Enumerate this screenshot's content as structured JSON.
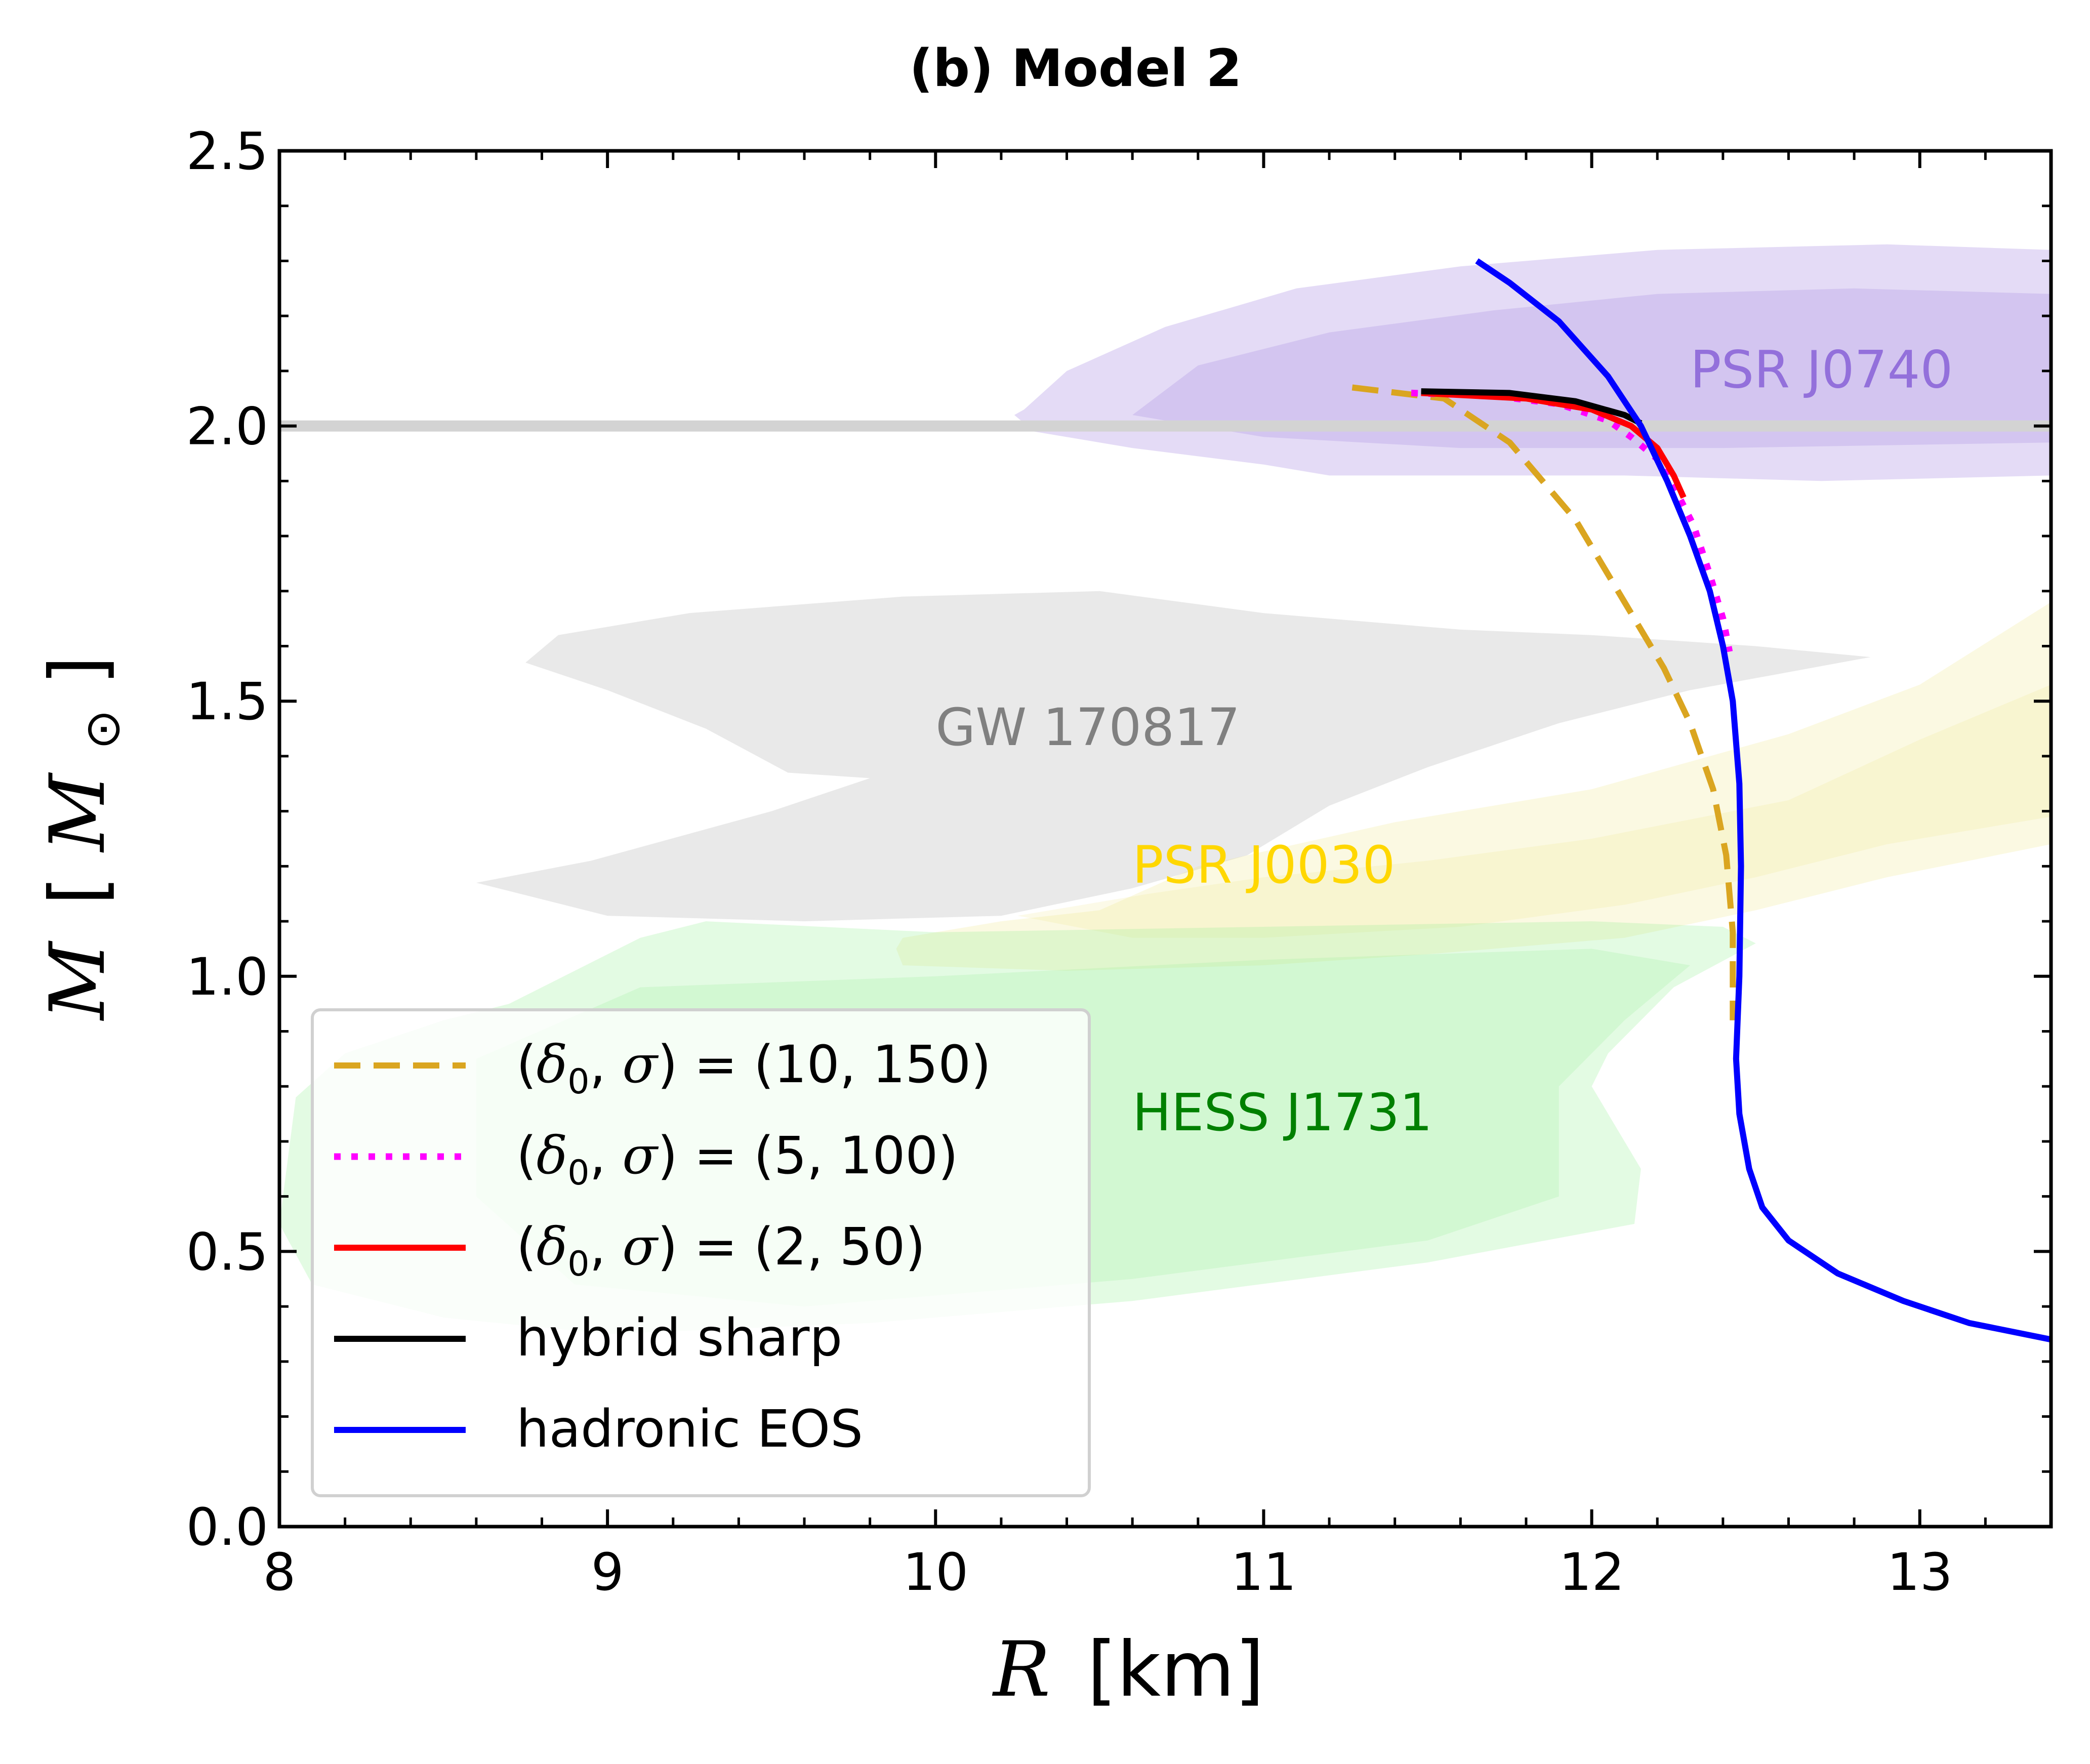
{
  "chart_data": {
    "type": "line",
    "title": "(b) Model 2",
    "xlabel": {
      "var": "R",
      "unit": "[km]"
    },
    "ylabel": {
      "var": "M",
      "unit_open": "[",
      "unit_var": "M",
      "unit_sub": "⊙",
      "unit_close": "]"
    },
    "xlim": [
      8,
      13.4
    ],
    "ylim": [
      0,
      2.5
    ],
    "xticks": [
      8,
      9,
      10,
      11,
      12,
      13
    ],
    "yticks": [
      0.0,
      0.5,
      1.0,
      1.5,
      2.0,
      2.5
    ],
    "xtick_labels": [
      "8",
      "9",
      "10",
      "11",
      "12",
      "13"
    ],
    "ytick_labels": [
      "0.0",
      "0.5",
      "1.0",
      "1.5",
      "2.0",
      "2.5"
    ],
    "reference_line": {
      "y": 2.0,
      "color": "#d3d3d3"
    },
    "regions": [
      {
        "name": "PSR J0740",
        "color": "#9370db",
        "label_pos": {
          "x": 12.3,
          "y": 2.07
        },
        "outer": [
          [
            10.27,
            2.03
          ],
          [
            10.24,
            2.02
          ],
          [
            10.3,
            1.99
          ],
          [
            10.6,
            1.96
          ],
          [
            11.0,
            1.93
          ],
          [
            11.2,
            1.91
          ],
          [
            11.6,
            1.91
          ],
          [
            12.1,
            1.91
          ],
          [
            12.7,
            1.9
          ],
          [
            13.4,
            1.91
          ],
          [
            13.4,
            2.32
          ],
          [
            12.9,
            2.33
          ],
          [
            12.2,
            2.32
          ],
          [
            11.6,
            2.29
          ],
          [
            11.1,
            2.25
          ],
          [
            10.7,
            2.18
          ],
          [
            10.4,
            2.1
          ]
        ],
        "inner": [
          [
            10.6,
            2.02
          ],
          [
            11.0,
            1.98
          ],
          [
            11.6,
            1.96
          ],
          [
            12.4,
            1.96
          ],
          [
            13.4,
            1.97
          ],
          [
            13.4,
            2.24
          ],
          [
            12.8,
            2.25
          ],
          [
            12.2,
            2.24
          ],
          [
            11.7,
            2.21
          ],
          [
            11.2,
            2.17
          ],
          [
            10.8,
            2.11
          ]
        ]
      },
      {
        "name": "GW 170817",
        "color": "#a9a9a9",
        "label_pos": {
          "x": 10.0,
          "y": 1.42
        },
        "outer": [
          [
            8.75,
            1.57
          ],
          [
            8.85,
            1.62
          ],
          [
            9.25,
            1.66
          ],
          [
            9.9,
            1.69
          ],
          [
            10.5,
            1.7
          ],
          [
            11.0,
            1.66
          ],
          [
            11.6,
            1.63
          ],
          [
            12.0,
            1.62
          ],
          [
            12.5,
            1.6
          ],
          [
            12.85,
            1.58
          ],
          [
            12.3,
            1.52
          ],
          [
            11.9,
            1.46
          ],
          [
            11.5,
            1.38
          ],
          [
            11.2,
            1.31
          ],
          [
            10.95,
            1.22
          ],
          [
            10.6,
            1.16
          ],
          [
            10.2,
            1.11
          ],
          [
            9.6,
            1.1
          ],
          [
            9.0,
            1.11
          ],
          [
            8.6,
            1.17
          ],
          [
            8.95,
            1.21
          ],
          [
            9.5,
            1.3
          ],
          [
            9.8,
            1.36
          ],
          [
            9.55,
            1.37
          ],
          [
            9.3,
            1.45
          ],
          [
            9.0,
            1.52
          ]
        ],
        "inner": null
      },
      {
        "name": "PSR J0030",
        "color": "#f0e68c",
        "label_pos": {
          "x": 10.6,
          "y": 1.17
        },
        "outer": [
          [
            9.9,
            1.07
          ],
          [
            10.2,
            1.1
          ],
          [
            10.5,
            1.12
          ],
          [
            10.8,
            1.2
          ],
          [
            11.4,
            1.28
          ],
          [
            12.0,
            1.34
          ],
          [
            12.6,
            1.44
          ],
          [
            13.0,
            1.53
          ],
          [
            13.4,
            1.68
          ],
          [
            13.4,
            1.24
          ],
          [
            12.9,
            1.18
          ],
          [
            12.5,
            1.12
          ],
          [
            12.1,
            1.07
          ],
          [
            11.5,
            1.04
          ],
          [
            11.0,
            1.02
          ],
          [
            10.4,
            1.01
          ],
          [
            9.9,
            1.02
          ],
          [
            9.88,
            1.05
          ]
        ],
        "inner": [
          [
            10.25,
            1.11
          ],
          [
            10.65,
            1.15
          ],
          [
            11.0,
            1.18
          ],
          [
            11.5,
            1.21
          ],
          [
            12.0,
            1.25
          ],
          [
            12.6,
            1.32
          ],
          [
            13.0,
            1.43
          ],
          [
            13.4,
            1.53
          ],
          [
            13.4,
            1.29
          ],
          [
            12.9,
            1.24
          ],
          [
            12.5,
            1.18
          ],
          [
            12.1,
            1.13
          ],
          [
            11.6,
            1.09
          ],
          [
            11.0,
            1.07
          ],
          [
            10.6,
            1.07
          ]
        ]
      },
      {
        "name": "HESS J1731",
        "color": "#90ee90",
        "label_pos": {
          "x": 10.6,
          "y": 0.72
        },
        "outer": [
          [
            8.05,
            0.78
          ],
          [
            8.2,
            0.86
          ],
          [
            8.5,
            0.92
          ],
          [
            8.7,
            0.95
          ],
          [
            9.1,
            1.07
          ],
          [
            9.3,
            1.1
          ],
          [
            10.0,
            1.08
          ],
          [
            11.0,
            1.09
          ],
          [
            12.0,
            1.1
          ],
          [
            12.4,
            1.09
          ],
          [
            12.5,
            1.06
          ],
          [
            12.25,
            0.98
          ],
          [
            12.05,
            0.86
          ],
          [
            12.0,
            0.8
          ],
          [
            12.15,
            0.65
          ],
          [
            12.13,
            0.55
          ],
          [
            11.5,
            0.48
          ],
          [
            10.6,
            0.41
          ],
          [
            9.8,
            0.37
          ],
          [
            9.0,
            0.35
          ],
          [
            8.5,
            0.38
          ],
          [
            8.1,
            0.44
          ],
          [
            8.0,
            0.55
          ]
        ],
        "inner": [
          [
            8.6,
            0.6
          ],
          [
            8.6,
            0.85
          ],
          [
            9.1,
            0.98
          ],
          [
            10.0,
            1.0
          ],
          [
            11.0,
            1.03
          ],
          [
            12.0,
            1.05
          ],
          [
            12.3,
            1.02
          ],
          [
            12.1,
            0.92
          ],
          [
            11.9,
            0.8
          ],
          [
            11.9,
            0.6
          ],
          [
            11.5,
            0.52
          ],
          [
            10.6,
            0.45
          ],
          [
            9.6,
            0.4
          ],
          [
            8.9,
            0.44
          ]
        ]
      }
    ],
    "series": [
      {
        "name": "(δ0, σ) = (10, 150)",
        "color": "#daa520",
        "style": "dashed",
        "width": 12,
        "points": [
          [
            11.27,
            2.07
          ],
          [
            11.55,
            2.05
          ],
          [
            11.75,
            1.97
          ],
          [
            11.95,
            1.83
          ],
          [
            12.1,
            1.68
          ],
          [
            12.22,
            1.56
          ],
          [
            12.3,
            1.46
          ],
          [
            12.37,
            1.34
          ],
          [
            12.41,
            1.22
          ],
          [
            12.43,
            1.08
          ],
          [
            12.43,
            0.92
          ]
        ]
      },
      {
        "name": "(δ0, σ) = (5, 100)",
        "color": "#ff00ff",
        "style": "dotted",
        "width": 13,
        "points": [
          [
            11.45,
            2.06
          ],
          [
            11.7,
            2.055
          ],
          [
            11.9,
            2.04
          ],
          [
            12.05,
            2.01
          ],
          [
            12.12,
            1.98
          ],
          [
            12.2,
            1.94
          ],
          [
            12.25,
            1.89
          ],
          [
            12.31,
            1.82
          ],
          [
            12.36,
            1.73
          ],
          [
            12.4,
            1.65
          ],
          [
            12.42,
            1.59
          ]
        ]
      },
      {
        "name": "(δ0, σ) = (2, 50)",
        "color": "#ff0000",
        "style": "solid",
        "width": 12,
        "points": [
          [
            11.48,
            2.06
          ],
          [
            11.8,
            2.05
          ],
          [
            12.0,
            2.03
          ],
          [
            12.12,
            2.0
          ],
          [
            12.2,
            1.96
          ],
          [
            12.25,
            1.91
          ],
          [
            12.28,
            1.87
          ]
        ]
      },
      {
        "name": "hybrid sharp",
        "color": "#000000",
        "style": "solid",
        "width": 12,
        "points": [
          [
            11.48,
            2.063
          ],
          [
            11.75,
            2.06
          ],
          [
            11.95,
            2.045
          ],
          [
            12.1,
            2.02
          ],
          [
            12.15,
            2.005
          ]
        ]
      },
      {
        "name": "hadronic EOS",
        "color": "#0000ff",
        "style": "solid",
        "width": 12,
        "points": [
          [
            11.65,
            2.3
          ],
          [
            11.75,
            2.26
          ],
          [
            11.9,
            2.19
          ],
          [
            12.05,
            2.09
          ],
          [
            12.15,
            2.0
          ],
          [
            12.23,
            1.9
          ],
          [
            12.3,
            1.8
          ],
          [
            12.36,
            1.7
          ],
          [
            12.4,
            1.6
          ],
          [
            12.43,
            1.5
          ],
          [
            12.45,
            1.35
          ],
          [
            12.455,
            1.2
          ],
          [
            12.45,
            1.0
          ],
          [
            12.44,
            0.85
          ],
          [
            12.45,
            0.75
          ],
          [
            12.48,
            0.65
          ],
          [
            12.52,
            0.58
          ],
          [
            12.6,
            0.52
          ],
          [
            12.75,
            0.46
          ],
          [
            12.95,
            0.41
          ],
          [
            13.15,
            0.37
          ],
          [
            13.4,
            0.34
          ]
        ]
      }
    ],
    "legend": {
      "position": "lower-left",
      "entries": [
        {
          "pre": "(",
          "v1": "δ",
          "sub": "0",
          "mid": ", ",
          "v2": "σ",
          "post": ") = (10, 150)"
        },
        {
          "pre": "(",
          "v1": "δ",
          "sub": "0",
          "mid": ", ",
          "v2": "σ",
          "post": ") = (5, 100)"
        },
        {
          "pre": "(",
          "v1": "δ",
          "sub": "0",
          "mid": ", ",
          "v2": "σ",
          "post": ") = (2, 50)"
        },
        {
          "text": "hybrid sharp"
        },
        {
          "text": "hadronic EOS"
        }
      ]
    }
  }
}
